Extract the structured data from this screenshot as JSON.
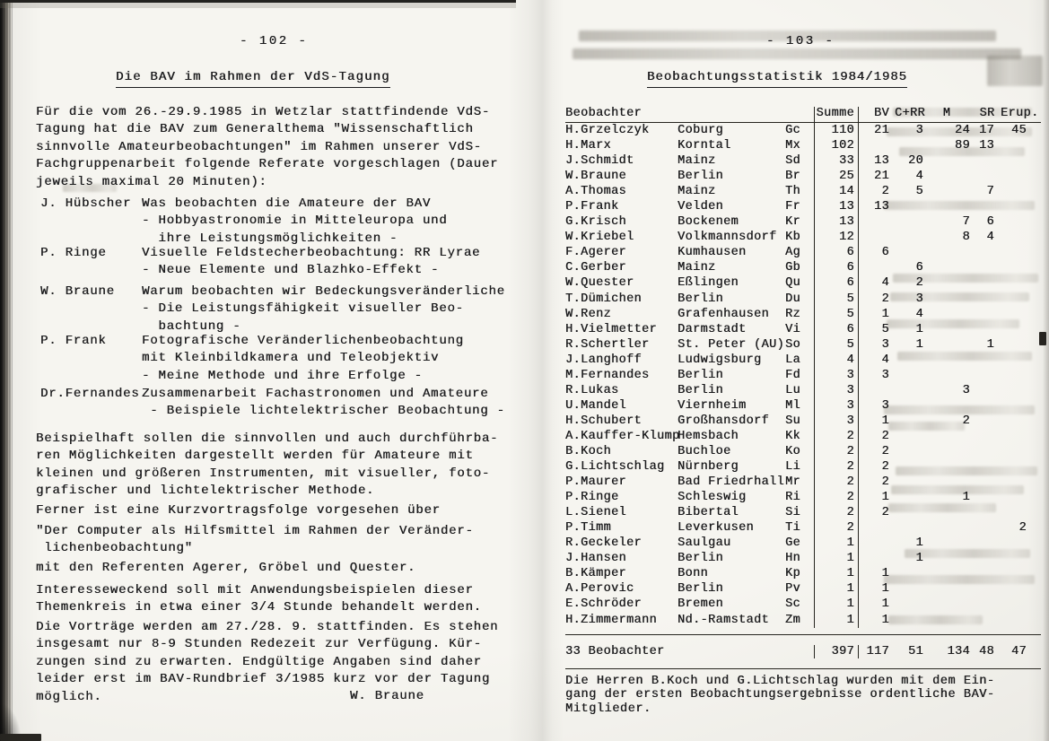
{
  "left_page": {
    "page_number": "- 102 -",
    "title": "Die BAV im Rahmen der VdS-Tagung",
    "intro": "Für die vom 26.-29.9.1985 in Wetzlar stattfindende VdS-\nTagung hat die BAV zum Generalthema \"Wissenschaftlich\nsinnvolle Amateurbeobachtungen\" im Rahmen unserer VdS-\nFachgruppenarbeit folgende Referate vorgeschlagen (Dauer\njeweils maximal 20 Minuten):",
    "speakers": [
      {
        "name": "J. Hübscher",
        "text": "Was beobachten die Amateure der BAV\n- Hobbyastronomie in Mitteleuropa und\n  ihre Leistungsmöglichkeiten -"
      },
      {
        "name": "P. Ringe",
        "text": "Visuelle Feldstecherbeobachtung: RR Lyrae\n- Neue Elemente und Blazhko-Effekt -"
      },
      {
        "name": "W. Braune",
        "text": "Warum beobachten wir Bedeckungsveränderliche\n- Die Leistungsfähigkeit visueller Beo-\n  bachtung -"
      },
      {
        "name": "P. Frank",
        "text": "Fotografische Veränderlichenbeobachtung\nmit Kleinbildkamera und Teleobjektiv\n- Meine Methode und ihre Erfolge -"
      },
      {
        "name": "Dr.Fernandes",
        "text": "Zusammenarbeit Fachastronomen und Amateure\n - Beispiele lichtelektrischer Beobachtung -"
      }
    ],
    "paragraphs": {
      "p2": "Beispielhaft sollen die sinnvollen und auch durchführba-\nren Möglichkeiten dargestellt werden für Amateure mit\nkleinen und größeren Instrumenten, mit visueller, foto-\ngrafischer und lichtelektrischer Methode.",
      "p3": "Ferner ist eine Kurzvortragsfolge vorgesehen über",
      "p4": "\"Der Computer als Hilfsmittel im Rahmen der Veränder-\n lichenbeobachtung\"",
      "p5": "mit den Referenten Agerer, Gröbel und Quester.",
      "p6": "Interesseweckend soll mit Anwendungsbeispielen dieser\nThemenkreis in etwa einer 3/4 Stunde behandelt werden.",
      "p7": "Die Vorträge werden am 27./28. 9. stattfinden. Es stehen\ninsgesamt nur 8-9 Stunden Redezeit zur Verfügung. Kür-\nzungen sind zu erwarten. Endgültige Angaben sind daher\nleider erst im BAV-Rundbrief 3/1985 kurz vor der Tagung\nmöglich."
    },
    "signature": "W. Braune"
  },
  "right_page": {
    "page_number": "- 103 -",
    "title": "Beobachtungsstatistik 1984/1985",
    "table": {
      "columns": [
        "Beobachter",
        "Summe",
        "BV",
        "C+RR",
        "M",
        "SR",
        "Erup."
      ],
      "observers": [
        {
          "name": "H.Grzelczyk",
          "city": "Coburg",
          "code": "Gc",
          "summe": "110",
          "bv": "21",
          "crr": "3",
          "m": "24",
          "sr": "17",
          "erup": "45"
        },
        {
          "name": "H.Marx",
          "city": "Korntal",
          "code": "Mx",
          "summe": "102",
          "bv": "",
          "crr": "",
          "m": "89",
          "sr": "13",
          "erup": ""
        },
        {
          "name": "J.Schmidt",
          "city": "Mainz",
          "code": "Sd",
          "summe": "33",
          "bv": "13",
          "crr": "20",
          "m": "",
          "sr": "",
          "erup": ""
        },
        {
          "name": "W.Braune",
          "city": "Berlin",
          "code": "Br",
          "summe": "25",
          "bv": "21",
          "crr": "4",
          "m": "",
          "sr": "",
          "erup": ""
        },
        {
          "name": "A.Thomas",
          "city": "Mainz",
          "code": "Th",
          "summe": "14",
          "bv": "2",
          "crr": "5",
          "m": "",
          "sr": "7",
          "erup": ""
        },
        {
          "name": "P.Frank",
          "city": "Velden",
          "code": "Fr",
          "summe": "13",
          "bv": "13",
          "crr": "",
          "m": "",
          "sr": "",
          "erup": ""
        },
        {
          "name": "G.Krisch",
          "city": "Bockenem",
          "code": "Kr",
          "summe": "13",
          "bv": "",
          "crr": "",
          "m": "7",
          "sr": "6",
          "erup": ""
        },
        {
          "name": "W.Kriebel",
          "city": "Volkmannsdorf",
          "code": "Kb",
          "summe": "12",
          "bv": "",
          "crr": "",
          "m": "8",
          "sr": "4",
          "erup": ""
        },
        {
          "name": "F.Agerer",
          "city": "Kumhausen",
          "code": "Ag",
          "summe": "6",
          "bv": "6",
          "crr": "",
          "m": "",
          "sr": "",
          "erup": ""
        },
        {
          "name": "C.Gerber",
          "city": "Mainz",
          "code": "Gb",
          "summe": "6",
          "bv": "",
          "crr": "6",
          "m": "",
          "sr": "",
          "erup": ""
        },
        {
          "name": "W.Quester",
          "city": "Eßlingen",
          "code": "Qu",
          "summe": "6",
          "bv": "4",
          "crr": "2",
          "m": "",
          "sr": "",
          "erup": ""
        },
        {
          "name": "T.Dümichen",
          "city": "Berlin",
          "code": "Du",
          "summe": "5",
          "bv": "2",
          "crr": "3",
          "m": "",
          "sr": "",
          "erup": ""
        },
        {
          "name": "W.Renz",
          "city": "Grafenhausen",
          "code": "Rz",
          "summe": "5",
          "bv": "1",
          "crr": "4",
          "m": "",
          "sr": "",
          "erup": ""
        },
        {
          "name": "H.Vielmetter",
          "city": "Darmstadt",
          "code": "Vi",
          "summe": "6",
          "bv": "5",
          "crr": "1",
          "m": "",
          "sr": "",
          "erup": ""
        },
        {
          "name": "R.Schertler",
          "city": "St. Peter (AU)",
          "code": "So",
          "summe": "5",
          "bv": "3",
          "crr": "1",
          "m": "",
          "sr": "1",
          "erup": ""
        },
        {
          "name": "J.Langhoff",
          "city": "Ludwigsburg",
          "code": "La",
          "summe": "4",
          "bv": "4",
          "crr": "",
          "m": "",
          "sr": "",
          "erup": ""
        },
        {
          "name": "M.Fernandes",
          "city": "Berlin",
          "code": "Fd",
          "summe": "3",
          "bv": "3",
          "crr": "",
          "m": "",
          "sr": "",
          "erup": ""
        },
        {
          "name": "R.Lukas",
          "city": "Berlin",
          "code": "Lu",
          "summe": "3",
          "bv": "",
          "crr": "",
          "m": "3",
          "sr": "",
          "erup": ""
        },
        {
          "name": "U.Mandel",
          "city": "Viernheim",
          "code": "Ml",
          "summe": "3",
          "bv": "3",
          "crr": "",
          "m": "",
          "sr": "",
          "erup": ""
        },
        {
          "name": "H.Schubert",
          "city": "Großhansdorf",
          "code": "Su",
          "summe": "3",
          "bv": "1",
          "crr": "",
          "m": "2",
          "sr": "",
          "erup": ""
        },
        {
          "name": "A.Kauffer-Klump",
          "city": "Hemsbach",
          "code": "Kk",
          "summe": "2",
          "bv": "2",
          "crr": "",
          "m": "",
          "sr": "",
          "erup": ""
        },
        {
          "name": "B.Koch",
          "city": "Buchloe",
          "code": "Ko",
          "summe": "2",
          "bv": "2",
          "crr": "",
          "m": "",
          "sr": "",
          "erup": ""
        },
        {
          "name": "G.Lichtschlag",
          "city": "Nürnberg",
          "code": "Li",
          "summe": "2",
          "bv": "2",
          "crr": "",
          "m": "",
          "sr": "",
          "erup": ""
        },
        {
          "name": "P.Maurer",
          "city": "Bad Friedrhall",
          "code": "Mr",
          "summe": "2",
          "bv": "2",
          "crr": "",
          "m": "",
          "sr": "",
          "erup": ""
        },
        {
          "name": "P.Ringe",
          "city": "Schleswig",
          "code": "Ri",
          "summe": "2",
          "bv": "1",
          "crr": "",
          "m": "1",
          "sr": "",
          "erup": ""
        },
        {
          "name": "L.Sienel",
          "city": "Bibertal",
          "code": "Si",
          "summe": "2",
          "bv": "2",
          "crr": "",
          "m": "",
          "sr": "",
          "erup": ""
        },
        {
          "name": "P.Timm",
          "city": "Leverkusen",
          "code": "Ti",
          "summe": "2",
          "bv": "",
          "crr": "",
          "m": "",
          "sr": "",
          "erup": "2"
        },
        {
          "name": "R.Geckeler",
          "city": "Saulgau",
          "code": "Ge",
          "summe": "1",
          "bv": "",
          "crr": "1",
          "m": "",
          "sr": "",
          "erup": ""
        },
        {
          "name": "J.Hansen",
          "city": "Berlin",
          "code": "Hn",
          "summe": "1",
          "bv": "",
          "crr": "1",
          "m": "",
          "sr": "",
          "erup": ""
        },
        {
          "name": "B.Kämper",
          "city": "Bonn",
          "code": "Kp",
          "summe": "1",
          "bv": "1",
          "crr": "",
          "m": "",
          "sr": "",
          "erup": ""
        },
        {
          "name": "A.Perovic",
          "city": "Berlin",
          "code": "Pv",
          "summe": "1",
          "bv": "1",
          "crr": "",
          "m": "",
          "sr": "",
          "erup": ""
        },
        {
          "name": "E.Schröder",
          "city": "Bremen",
          "code": "Sc",
          "summe": "1",
          "bv": "1",
          "crr": "",
          "m": "",
          "sr": "",
          "erup": ""
        },
        {
          "name": "H.Zimmermann",
          "city": "Nd.-Ramstadt",
          "code": "Zm",
          "summe": "1",
          "bv": "1",
          "crr": "",
          "m": "",
          "sr": "",
          "erup": ""
        }
      ],
      "totals": {
        "label": "33 Beobachter",
        "summe": "397",
        "bv": "117",
        "crr": "51",
        "m": "134",
        "sr": "48",
        "erup": "47"
      }
    },
    "footnote": "Die Herren B.Koch und G.Lichtschlag wurden mit dem Ein-\ngang der ersten Beobachtungsergebnisse ordentliche BAV-\nMitglieder."
  }
}
